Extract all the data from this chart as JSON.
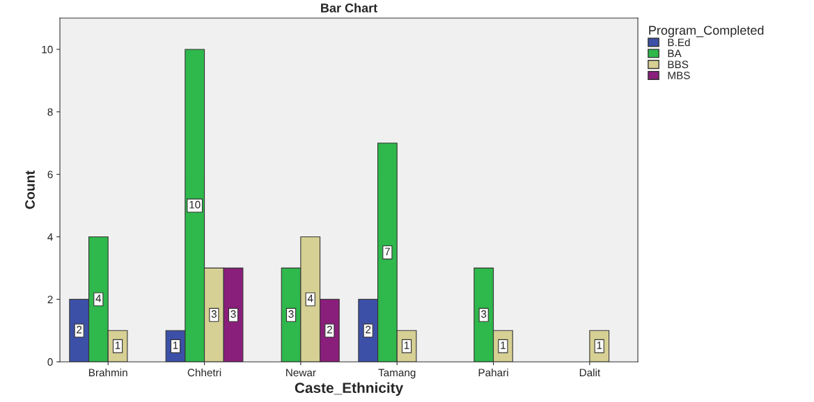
{
  "chart_data": {
    "type": "bar",
    "title": "Bar Chart",
    "xlabel": "Caste_Ethnicity",
    "ylabel": "Count",
    "legend_title": "Program_Completed",
    "categories": [
      "Brahmin",
      "Chhetri",
      "Newar",
      "Tamang",
      "Pahari",
      "Dalit"
    ],
    "series": [
      {
        "name": "B.Ed",
        "color": "#3c50a8",
        "values": [
          2,
          1,
          null,
          2,
          null,
          null
        ]
      },
      {
        "name": "BA",
        "color": "#2fb84c",
        "values": [
          4,
          10,
          3,
          7,
          3,
          null
        ]
      },
      {
        "name": "BBS",
        "color": "#d7d094",
        "values": [
          1,
          3,
          4,
          1,
          1,
          1
        ]
      },
      {
        "name": "MBS",
        "color": "#8a1e7b",
        "values": [
          null,
          3,
          2,
          null,
          null,
          null
        ]
      }
    ],
    "ylim": [
      0,
      11
    ],
    "yticks": [
      0,
      2,
      4,
      6,
      8,
      10
    ],
    "grid": false,
    "legend": "right",
    "data_labels": true
  }
}
